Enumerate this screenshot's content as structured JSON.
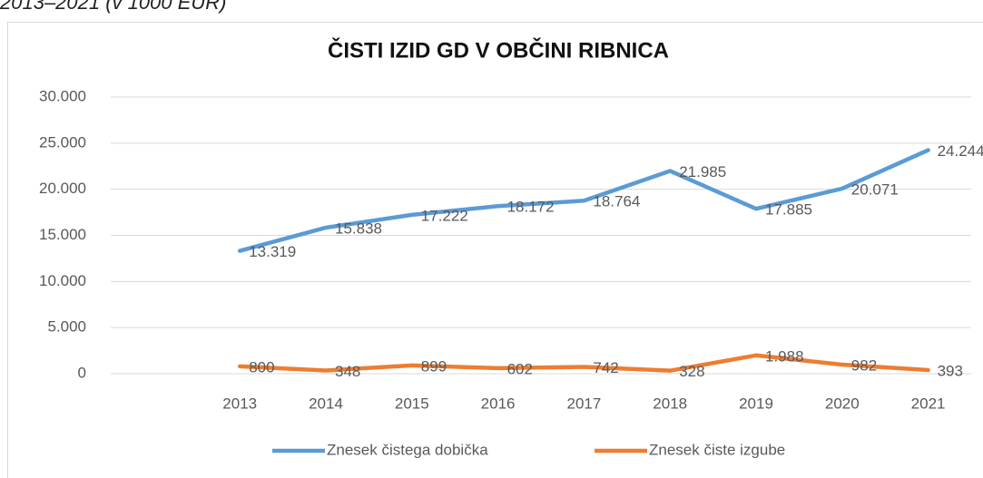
{
  "caption": "2013–2021 (v 1000 EUR)",
  "chart_data": {
    "type": "line",
    "title": "ČISTI IZID GD V OBČINI RIBNICA",
    "categories": [
      null,
      "2013",
      "2014",
      "2015",
      "2016",
      "2017",
      "2018",
      "2019",
      "2020",
      "2021"
    ],
    "series": [
      {
        "name": "Znesek čistega dobička",
        "color": "#5b9bd5",
        "values": [
          null,
          13319,
          15838,
          17222,
          18172,
          18764,
          21985,
          17885,
          20071,
          24244
        ],
        "value_labels": [
          null,
          "13.319",
          "15.838",
          "17.222",
          "18.172",
          "18.764",
          "21.985",
          "17.885",
          "20.071",
          "24.244"
        ]
      },
      {
        "name": "Znesek čiste izgube",
        "color": "#ed7d31",
        "values": [
          null,
          800,
          348,
          899,
          602,
          742,
          328,
          1988,
          982,
          393
        ],
        "value_labels": [
          null,
          "800",
          "348",
          "899",
          "602",
          "742",
          "328",
          "1.988",
          "982",
          "393"
        ]
      }
    ],
    "ylim": [
      0,
      30000
    ],
    "yticks": [
      0,
      {
        "value": 5000,
        "label": "5.000"
      },
      {
        "value": 10000,
        "label": "10.000"
      },
      {
        "value": 15000,
        "label": "15.000"
      },
      {
        "value": 20000,
        "label": "20.000"
      },
      {
        "value": 25000,
        "label": "25.000"
      },
      {
        "value": 30000,
        "label": "30.000"
      }
    ],
    "grid": true,
    "legend": "bottom"
  }
}
